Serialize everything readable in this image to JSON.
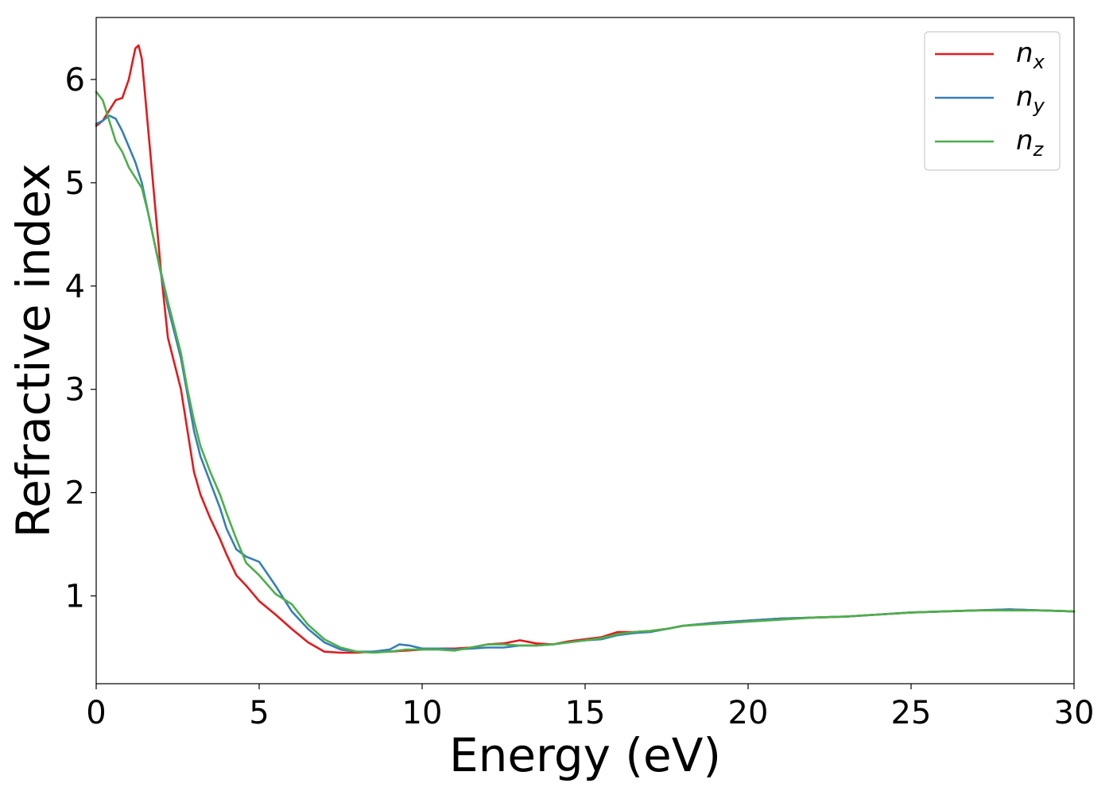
{
  "chart_data": {
    "type": "line",
    "title": "",
    "xlabel": "Energy (eV)",
    "ylabel": "Refractive index",
    "xlim": [
      0,
      30
    ],
    "ylim": [
      0.15,
      6.6
    ],
    "xticks": [
      0,
      5,
      10,
      15,
      20,
      25,
      30
    ],
    "xtick_labels": [
      "0",
      "5",
      "10",
      "15",
      "20",
      "25",
      "30"
    ],
    "yticks": [
      1,
      2,
      3,
      4,
      5,
      6
    ],
    "ytick_labels": [
      "1",
      "2",
      "3",
      "4",
      "5",
      "6"
    ],
    "grid": false,
    "legend_position": "top-right",
    "series": [
      {
        "name": "n",
        "subscript": "x",
        "color": "#e41a1c",
        "x": [
          0,
          0.2,
          0.4,
          0.6,
          0.8,
          1.0,
          1.2,
          1.3,
          1.4,
          1.6,
          1.8,
          2.0,
          2.2,
          2.4,
          2.6,
          2.8,
          3.0,
          3.2,
          3.5,
          3.8,
          4.0,
          4.3,
          4.6,
          5.0,
          5.5,
          6.0,
          6.5,
          7.0,
          7.5,
          8.0,
          8.5,
          9.0,
          9.5,
          10.0,
          10.5,
          11.0,
          11.5,
          12.0,
          12.5,
          13.0,
          13.5,
          14.0,
          14.5,
          15.0,
          15.5,
          16.0,
          16.5,
          17.0,
          17.5,
          18.0,
          19.0,
          20.0,
          21.0,
          22.0,
          23.0,
          24.0,
          25.0,
          26.0,
          27.0,
          28.0,
          29.0,
          30.0
        ],
        "y": [
          5.55,
          5.6,
          5.7,
          5.8,
          5.82,
          6.0,
          6.3,
          6.33,
          6.2,
          5.5,
          4.8,
          4.1,
          3.5,
          3.25,
          3.0,
          2.6,
          2.2,
          1.98,
          1.75,
          1.55,
          1.4,
          1.2,
          1.1,
          0.95,
          0.82,
          0.68,
          0.55,
          0.46,
          0.45,
          0.45,
          0.46,
          0.46,
          0.47,
          0.48,
          0.49,
          0.49,
          0.5,
          0.53,
          0.54,
          0.57,
          0.54,
          0.53,
          0.56,
          0.58,
          0.6,
          0.65,
          0.65,
          0.66,
          0.68,
          0.71,
          0.74,
          0.76,
          0.78,
          0.79,
          0.8,
          0.82,
          0.84,
          0.85,
          0.86,
          0.87,
          0.86,
          0.85
        ]
      },
      {
        "name": "n",
        "subscript": "y",
        "color": "#377eb8",
        "x": [
          0,
          0.2,
          0.4,
          0.6,
          0.8,
          1.0,
          1.2,
          1.4,
          1.6,
          1.8,
          2.0,
          2.2,
          2.4,
          2.6,
          2.8,
          3.0,
          3.2,
          3.5,
          3.8,
          4.0,
          4.3,
          4.6,
          5.0,
          5.5,
          6.0,
          6.5,
          7.0,
          7.5,
          8.0,
          8.5,
          9.0,
          9.3,
          9.6,
          10.0,
          10.5,
          11.0,
          11.5,
          12.0,
          12.5,
          13.0,
          13.5,
          14.0,
          14.5,
          15.0,
          15.5,
          16.0,
          16.5,
          17.0,
          17.5,
          18.0,
          19.0,
          20.0,
          21.0,
          22.0,
          23.0,
          24.0,
          25.0,
          26.0,
          27.0,
          28.0,
          29.0,
          30.0
        ],
        "y": [
          5.57,
          5.6,
          5.65,
          5.62,
          5.5,
          5.35,
          5.2,
          5.0,
          4.7,
          4.4,
          4.1,
          3.8,
          3.55,
          3.3,
          2.95,
          2.6,
          2.35,
          2.1,
          1.85,
          1.65,
          1.45,
          1.38,
          1.33,
          1.1,
          0.85,
          0.68,
          0.55,
          0.48,
          0.46,
          0.46,
          0.48,
          0.53,
          0.52,
          0.49,
          0.49,
          0.48,
          0.49,
          0.5,
          0.5,
          0.52,
          0.52,
          0.53,
          0.55,
          0.57,
          0.58,
          0.62,
          0.64,
          0.65,
          0.68,
          0.71,
          0.74,
          0.76,
          0.78,
          0.79,
          0.8,
          0.82,
          0.84,
          0.85,
          0.86,
          0.87,
          0.86,
          0.85
        ]
      },
      {
        "name": "n",
        "subscript": "z",
        "color": "#4daf4a",
        "x": [
          0,
          0.2,
          0.4,
          0.6,
          0.8,
          1.0,
          1.2,
          1.4,
          1.6,
          1.8,
          2.0,
          2.2,
          2.4,
          2.6,
          2.8,
          3.0,
          3.2,
          3.5,
          3.8,
          4.0,
          4.3,
          4.6,
          5.0,
          5.5,
          6.0,
          6.5,
          7.0,
          7.5,
          8.0,
          8.5,
          9.0,
          9.5,
          10.0,
          10.5,
          11.0,
          11.5,
          12.0,
          12.5,
          13.0,
          13.5,
          14.0,
          14.5,
          15.0,
          15.5,
          16.0,
          16.5,
          17.0,
          17.5,
          18.0,
          19.0,
          20.0,
          21.0,
          22.0,
          23.0,
          24.0,
          25.0,
          26.0,
          27.0,
          28.0,
          29.0,
          30.0
        ],
        "y": [
          5.88,
          5.8,
          5.6,
          5.4,
          5.3,
          5.15,
          5.05,
          4.95,
          4.7,
          4.4,
          4.12,
          3.85,
          3.6,
          3.35,
          3.0,
          2.7,
          2.45,
          2.2,
          1.98,
          1.8,
          1.55,
          1.32,
          1.2,
          1.02,
          0.92,
          0.72,
          0.58,
          0.5,
          0.46,
          0.45,
          0.46,
          0.48,
          0.48,
          0.48,
          0.47,
          0.5,
          0.53,
          0.53,
          0.52,
          0.52,
          0.53,
          0.55,
          0.57,
          0.59,
          0.63,
          0.65,
          0.66,
          0.68,
          0.71,
          0.73,
          0.75,
          0.77,
          0.79,
          0.8,
          0.82,
          0.84,
          0.85,
          0.86,
          0.86,
          0.86,
          0.85
        ]
      }
    ]
  }
}
